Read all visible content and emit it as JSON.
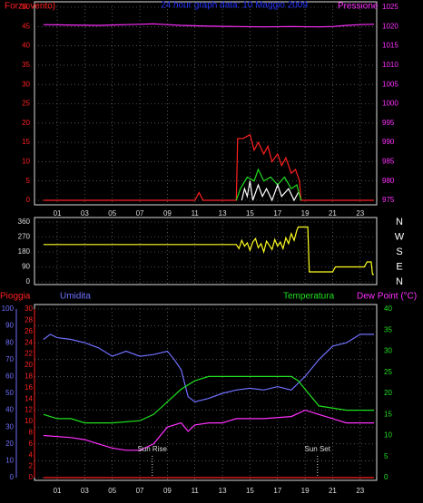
{
  "chart_data": [
    {
      "type": "line",
      "title": "24 hour graph data: 10 Maggio 2009",
      "xlim": [
        -0.65,
        24.2
      ],
      "xticks": [
        {
          "value": 1,
          "label": "01"
        },
        {
          "value": 3,
          "label": "03"
        },
        {
          "value": 5,
          "label": "05"
        },
        {
          "value": 7,
          "label": "07"
        },
        {
          "value": 9,
          "label": "09"
        },
        {
          "value": 11,
          "label": "11"
        },
        {
          "value": 13,
          "label": "13"
        },
        {
          "value": 15,
          "label": "15"
        },
        {
          "value": 17,
          "label": "17"
        },
        {
          "value": 19,
          "label": "19"
        },
        {
          "value": 21,
          "label": "21"
        },
        {
          "value": 23,
          "label": "23"
        }
      ],
      "ylim": [
        0,
        50
      ],
      "yticks": [
        0,
        5,
        10,
        15,
        20,
        25,
        30,
        35,
        40,
        45,
        50
      ],
      "y2lim": [
        975,
        1025
      ],
      "y2ticks": [
        975,
        980,
        985,
        990,
        995,
        1000,
        1005,
        1010,
        1015,
        1020,
        1025
      ],
      "grid": true,
      "series": [
        {
          "name": "Pressione",
          "color": "#ff30ff",
          "axis": "y2",
          "x": [
            0,
            2,
            4,
            6,
            8,
            9,
            10,
            12,
            14,
            16,
            18,
            20,
            21,
            22,
            23,
            24
          ],
          "values": [
            1020.5,
            1020.4,
            1020.3,
            1020.5,
            1020.7,
            1020.5,
            1020.3,
            1020.1,
            1020,
            1019.9,
            1020,
            1019.9,
            1020,
            1020.3,
            1020.5,
            1020.6
          ]
        },
        {
          "name": "Forza vento)",
          "color": "#ff2020",
          "x": [
            0,
            11,
            11.3,
            11.6,
            12,
            14,
            14.1,
            14.5,
            15,
            15.3,
            15.6,
            16,
            16.3,
            16.6,
            17,
            17.3,
            17.6,
            18,
            18.3,
            18.6,
            18.7,
            24
          ],
          "values": [
            0,
            0,
            2,
            0,
            0,
            0,
            16,
            16,
            17,
            13,
            15,
            12,
            14,
            10,
            12,
            9,
            11,
            7,
            8,
            5,
            0,
            0
          ]
        },
        {
          "color": "#20e020",
          "x": [
            14,
            14.3,
            14.8,
            15.3,
            15.6,
            16,
            16.5,
            17,
            17.5,
            18,
            18.4,
            18.7
          ],
          "values": [
            0,
            3,
            6,
            5,
            8,
            5,
            6,
            4,
            6,
            3,
            4,
            0
          ]
        },
        {
          "color": "#ffffff",
          "x": [
            14.4,
            14.6,
            14.8,
            15,
            15.2,
            15.6,
            15.9,
            16.2,
            16.6,
            17,
            17.3,
            17.8,
            18.2,
            18.5
          ],
          "values": [
            0,
            3,
            1,
            5,
            0,
            4,
            1,
            3,
            0,
            4,
            1,
            3,
            0,
            2
          ]
        }
      ]
    },
    {
      "type": "line",
      "xlim": [
        -0.65,
        24.2
      ],
      "xticks": [
        1,
        3,
        5,
        7,
        9,
        11,
        13,
        15,
        17,
        19,
        21,
        23
      ],
      "ylim": [
        0,
        360
      ],
      "yticks": [
        0,
        90,
        180,
        270,
        360
      ],
      "y2lim": [
        0,
        360
      ],
      "y2ticks": [
        {
          "value": 360,
          "label": "N"
        },
        {
          "value": 270,
          "label": "W"
        },
        {
          "value": 180,
          "label": "S"
        },
        {
          "value": 90,
          "label": "E"
        },
        {
          "value": 0,
          "label": "N"
        }
      ],
      "grid": true,
      "series": [
        {
          "color": "#ffff20",
          "x": [
            0,
            14,
            14.2,
            14.4,
            14.6,
            14.8,
            15,
            15.2,
            15.4,
            15.6,
            15.8,
            16,
            16.2,
            16.4,
            16.6,
            16.8,
            17,
            17.2,
            17.4,
            17.6,
            17.8,
            18,
            18.2,
            18.4,
            18.5,
            19.2,
            19.3,
            21,
            21.2,
            23.3,
            23.5,
            23.8,
            23.9,
            24
          ],
          "values": [
            225,
            225,
            200,
            250,
            215,
            235,
            190,
            240,
            260,
            205,
            230,
            180,
            245,
            220,
            195,
            255,
            215,
            240,
            200,
            265,
            230,
            290,
            250,
            310,
            330,
            330,
            60,
            60,
            90,
            90,
            120,
            120,
            45,
            45
          ]
        }
      ]
    },
    {
      "type": "line",
      "xlim": [
        -0.65,
        24.2
      ],
      "xticks": [
        {
          "value": 1,
          "label": "01"
        },
        {
          "value": 3,
          "label": "03"
        },
        {
          "value": 5,
          "label": "05"
        },
        {
          "value": 7,
          "label": "07"
        },
        {
          "value": 9,
          "label": "09"
        },
        {
          "value": 11,
          "label": "11"
        },
        {
          "value": 13,
          "label": "13"
        },
        {
          "value": 15,
          "label": "15"
        },
        {
          "value": 17,
          "label": "17"
        },
        {
          "value": 19,
          "label": "19"
        },
        {
          "value": 21,
          "label": "21"
        },
        {
          "value": 23,
          "label": "23"
        }
      ],
      "ylim": [
        0,
        100
      ],
      "yticks": [
        0,
        10,
        20,
        30,
        40,
        50,
        60,
        70,
        80,
        90,
        100
      ],
      "y3lim": [
        0,
        30
      ],
      "y3ticks": [
        0,
        2,
        4,
        6,
        8,
        10,
        12,
        14,
        16,
        18,
        20,
        22,
        24,
        26,
        28,
        30
      ],
      "y2lim": [
        0,
        40
      ],
      "y2ticks": [
        0,
        5,
        10,
        15,
        20,
        25,
        30,
        35,
        40
      ],
      "grid": true,
      "series": [
        {
          "name": "Pioggia",
          "color": "#ff2020",
          "axis": "y3",
          "x": [
            0,
            24
          ],
          "values": [
            0,
            0
          ]
        },
        {
          "name": "Umidita",
          "color": "#7070ff",
          "x": [
            0,
            0.5,
            1,
            2,
            3,
            4,
            5,
            6,
            7,
            8,
            9,
            9.5,
            10,
            10.5,
            11,
            12,
            13,
            14,
            15,
            16,
            17,
            18,
            19,
            20,
            21,
            22,
            23,
            24
          ],
          "values": [
            82,
            85,
            83,
            82,
            80,
            77,
            72,
            75,
            72,
            73,
            75,
            70,
            64,
            48,
            45,
            47,
            50,
            52,
            53,
            52,
            54,
            52,
            60,
            70,
            78,
            80,
            85,
            85
          ]
        },
        {
          "name": "Temperatura",
          "color": "#20e020",
          "axis": "y2",
          "x": [
            0,
            1,
            2,
            3,
            5,
            7,
            8,
            9,
            10,
            11,
            12,
            14,
            16,
            18,
            18.5,
            19,
            20,
            22,
            24
          ],
          "values": [
            15,
            14,
            14,
            13,
            13,
            13.5,
            15,
            18,
            21,
            23,
            24,
            24,
            24,
            24,
            23,
            21,
            17,
            16,
            16
          ]
        },
        {
          "name": "Dew Point (°C)",
          "color": "#ff30ff",
          "axis": "y2",
          "x": [
            0,
            2,
            3,
            4,
            5,
            6,
            7,
            8,
            9,
            10,
            10.5,
            11,
            12,
            13,
            14,
            16,
            18,
            19,
            20,
            21,
            22,
            24
          ],
          "values": [
            10,
            9.5,
            9,
            8,
            7,
            6.5,
            6.5,
            8,
            12,
            13,
            11,
            12.5,
            13,
            13,
            14,
            14,
            14.5,
            16,
            15,
            14,
            13,
            13
          ]
        }
      ],
      "annotations": [
        {
          "x": 7.9,
          "text": "Sun Rise"
        },
        {
          "x": 19.9,
          "text": "Sun Set"
        }
      ]
    }
  ]
}
